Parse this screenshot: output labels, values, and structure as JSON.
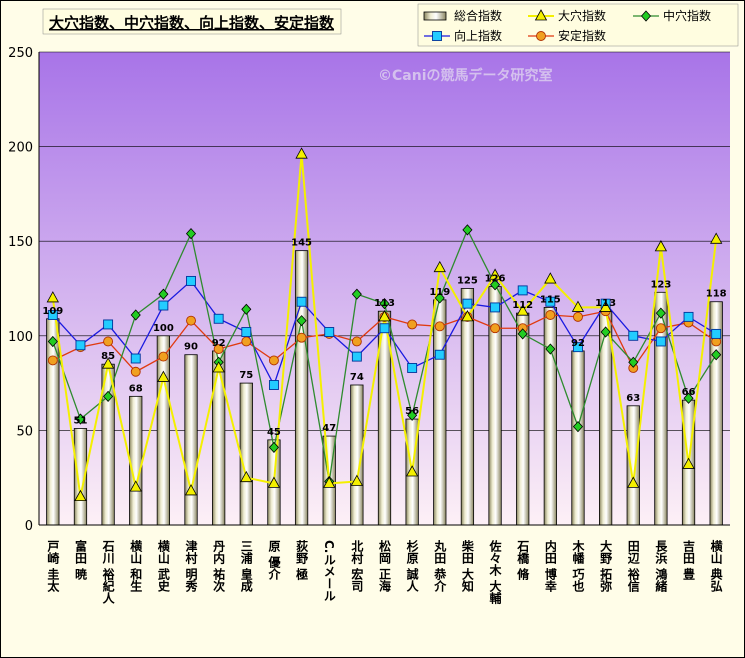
{
  "chart_data": {
    "type": "bar-line",
    "title": "大穴指数、中穴指数、向上指数、安定指数",
    "watermark": "©Caniの競馬データ研究室",
    "ylim": [
      0,
      250
    ],
    "yticks": [
      0,
      50,
      100,
      150,
      200,
      250
    ],
    "grid": "horizontal",
    "legend_position": "top-right",
    "categories": [
      "戸崎 圭太",
      "富田 暁",
      "石川 裕紀人",
      "横山 和生",
      "横山 武史",
      "津村 明秀",
      "丹内 祐次",
      "三浦 皇成",
      "原 優介",
      "荻野 極",
      "C.ルメール",
      "北村 宏司",
      "松岡 正海",
      "杉原 誠人",
      "丸田 恭介",
      "柴田 大知",
      "佐々木 大輔",
      "石橋 脩",
      "内田 博幸",
      "木幡 巧也",
      "大野 拓弥",
      "田辺 裕信",
      "長浜 鴻緒",
      "吉田 豊",
      "横山 典弘"
    ],
    "series": [
      {
        "name": "総合指数",
        "kind": "bar",
        "color": "#d8d4a8",
        "values": [
          109,
          51,
          85,
          68,
          100,
          90,
          92,
          75,
          45,
          145,
          47,
          74,
          113,
          56,
          119,
          125,
          126,
          112,
          115,
          92,
          113,
          63,
          123,
          66,
          118
        ]
      },
      {
        "name": "大穴指数",
        "kind": "line",
        "color": "#f4f000",
        "marker": "triangle",
        "values": [
          120,
          15,
          85,
          20,
          78,
          18,
          83,
          25,
          22,
          196,
          22,
          23,
          110,
          28,
          136,
          110,
          132,
          113,
          130,
          115,
          115,
          22,
          147,
          32,
          151
        ]
      },
      {
        "name": "中穴指数",
        "kind": "line",
        "color": "#2e8b2e",
        "marker": "diamond",
        "values": [
          97,
          56,
          68,
          111,
          122,
          154,
          86,
          114,
          41,
          108,
          23,
          122,
          117,
          58,
          120,
          156,
          127,
          101,
          93,
          52,
          102,
          86,
          112,
          67,
          90
        ]
      },
      {
        "name": "向上指数",
        "kind": "line",
        "color": "#1a1ae0",
        "marker": "square",
        "values": [
          111,
          95,
          106,
          88,
          116,
          129,
          109,
          102,
          74,
          118,
          102,
          89,
          104,
          83,
          90,
          117,
          115,
          124,
          118,
          94,
          117,
          100,
          97,
          110,
          101
        ]
      },
      {
        "name": "安定指数",
        "kind": "line",
        "color": "#e03a10",
        "marker": "circle",
        "values": [
          87,
          94,
          97,
          81,
          89,
          108,
          93,
          97,
          87,
          99,
          101,
          97,
          110,
          106,
          105,
          110,
          104,
          104,
          111,
          110,
          113,
          83,
          104,
          107,
          97
        ]
      }
    ]
  }
}
